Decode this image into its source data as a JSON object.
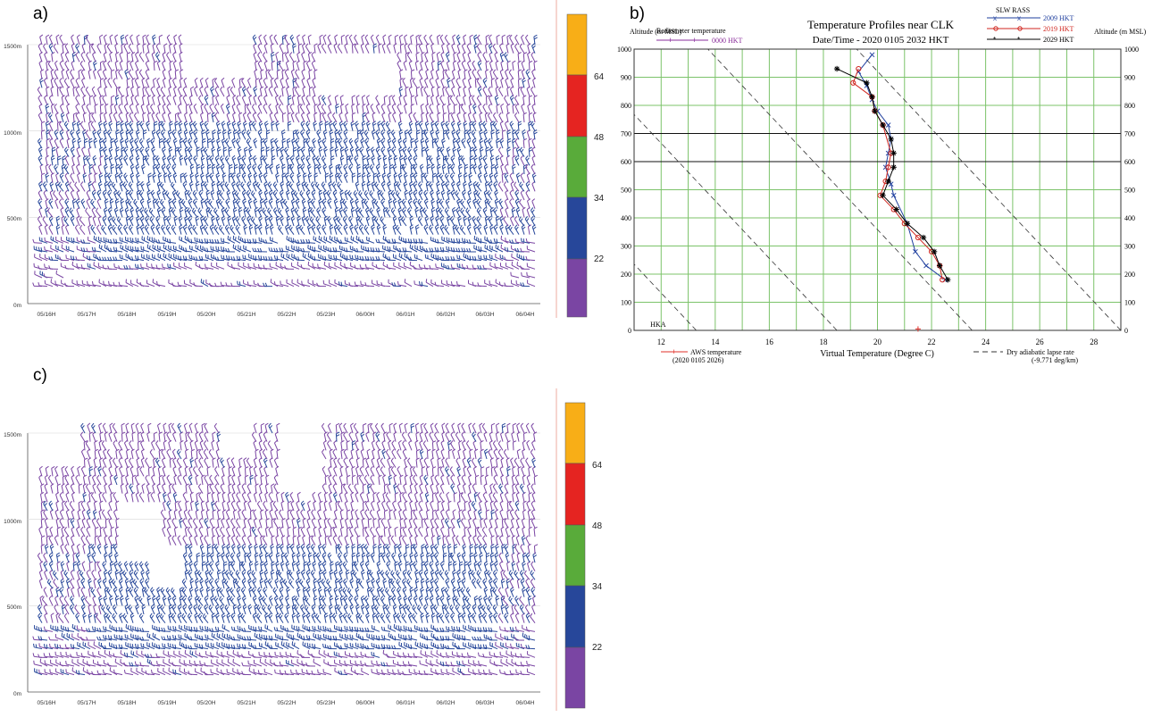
{
  "panels": {
    "a": {
      "label": "a)"
    },
    "b": {
      "label": "b)"
    },
    "c": {
      "label": "c)"
    }
  },
  "chart_data": [
    {
      "panel": "a",
      "type": "heatmap",
      "subtype": "wind-barb time-height section",
      "x_ticks": [
        "05/16H",
        "05/17H",
        "05/18H",
        "05/19H",
        "05/20H",
        "05/21H",
        "05/22H",
        "05/23H",
        "06/00H",
        "06/01H",
        "06/02H",
        "06/03H",
        "06/04H"
      ],
      "y_ticks": [
        "0m",
        "500m",
        "1000m",
        "1500m"
      ],
      "ylim": [
        0,
        1500
      ],
      "grid": true,
      "legend": "right",
      "colorbar": {
        "bounds": [
          "22",
          "34",
          "48",
          "64"
        ],
        "colors": [
          "#7a45a3",
          "#27479a",
          "#59ab3a",
          "#e52421",
          "#f8ae17"
        ]
      },
      "speed_class_by_height": {
        "heights_m": [
          150,
          300,
          500,
          700,
          900,
          1100,
          1300,
          1500
        ],
        "class": [
          "<22",
          "22-34",
          "22-34",
          "22-34",
          "22-34",
          "<22",
          "<22",
          "<22"
        ]
      }
    },
    {
      "panel": "b",
      "type": "line",
      "title": "Temperature Profiles near CLK",
      "subtitle": "Date/Time - 2020 0105 2032 HKT",
      "xlabel": "Virtual Temperature (Degree C)",
      "ylabel": "Altitude (m MSL)",
      "ylabel_right": "Altitude (m MSL)",
      "xlim": [
        11,
        29
      ],
      "ylim": [
        0,
        1000
      ],
      "x_ticks": [
        "12",
        "14",
        "16",
        "18",
        "20",
        "22",
        "24",
        "26",
        "28"
      ],
      "y_ticks": [
        "0",
        "100",
        "200",
        "300",
        "400",
        "500",
        "600",
        "700",
        "800",
        "900",
        "1000"
      ],
      "grid": true,
      "legend_left_title": "Radiometer temperature",
      "legend_right_title": "SLW RASS",
      "aws_label": "AWS temperature",
      "aws_sub": "(2020  0105 2026)",
      "lapse_label": "Dry adiabatic lapse rate",
      "lapse_sub": "(-9.771 deg/km)",
      "hka_label": "HKA",
      "series": [
        {
          "name": "0000 HKT",
          "color": "#8a2e9b",
          "marker": "+",
          "x": [],
          "y": []
        },
        {
          "name": "2009 HKT",
          "color": "#1f3f9e",
          "marker": "x",
          "x": [
            22.5,
            21.8,
            21.4,
            21.1,
            20.6,
            20.5,
            20.3,
            20.4,
            20.5,
            20.4,
            20.0,
            19.8,
            19.6,
            19.3,
            19.8
          ],
          "y": [
            180,
            230,
            280,
            380,
            480,
            520,
            580,
            630,
            680,
            730,
            780,
            820,
            870,
            920,
            980
          ]
        },
        {
          "name": "2019 HKT",
          "color": "#d0261f",
          "marker": "o",
          "x": [
            22.4,
            22.3,
            22.0,
            21.5,
            21.0,
            20.6,
            20.1,
            20.3,
            20.4,
            20.5,
            20.2,
            19.9,
            19.8,
            19.1,
            19.3
          ],
          "y": [
            180,
            230,
            280,
            330,
            380,
            430,
            480,
            530,
            580,
            630,
            730,
            780,
            830,
            880,
            930
          ]
        },
        {
          "name": "2029 HKT",
          "color": "#000000",
          "marker": "*",
          "x": [
            22.6,
            22.3,
            22.1,
            21.7,
            21.1,
            20.7,
            20.2,
            20.4,
            20.6,
            20.6,
            20.5,
            20.2,
            19.9,
            19.8,
            19.6,
            18.5
          ],
          "y": [
            180,
            230,
            280,
            330,
            380,
            430,
            480,
            530,
            580,
            630,
            680,
            730,
            780,
            830,
            880,
            930
          ]
        },
        {
          "name": "AWS temperature",
          "color": "#e0302a",
          "marker": "+",
          "x": [
            21.5
          ],
          "y": [
            5
          ]
        }
      ],
      "reference_lines": {
        "style": "dashed",
        "lapse_rate_deg_per_km": -9.771,
        "surface_temperatures": [
          13.3,
          18.5,
          23.5,
          29.0
        ]
      }
    },
    {
      "panel": "c",
      "type": "heatmap",
      "subtype": "wind-barb time-height section",
      "x_ticks": [
        "05/16H",
        "05/17H",
        "05/18H",
        "05/19H",
        "05/20H",
        "05/21H",
        "05/22H",
        "05/23H",
        "06/00H",
        "06/01H",
        "06/02H",
        "06/03H",
        "06/04H"
      ],
      "y_ticks": [
        "0m",
        "500m",
        "1000m",
        "1500m"
      ],
      "ylim": [
        0,
        1500
      ],
      "grid": true,
      "legend": "right",
      "colorbar": {
        "bounds": [
          "22",
          "34",
          "48",
          "64"
        ],
        "colors": [
          "#7a45a3",
          "#27479a",
          "#59ab3a",
          "#e52421",
          "#f8ae17"
        ]
      },
      "speed_class_by_height": {
        "heights_m": [
          150,
          300,
          500,
          700,
          900,
          1100,
          1300,
          1500
        ],
        "class": [
          "<22",
          "22-34",
          "22-34",
          "22-34",
          "<22",
          "<22",
          "<22",
          "<22"
        ]
      }
    }
  ]
}
